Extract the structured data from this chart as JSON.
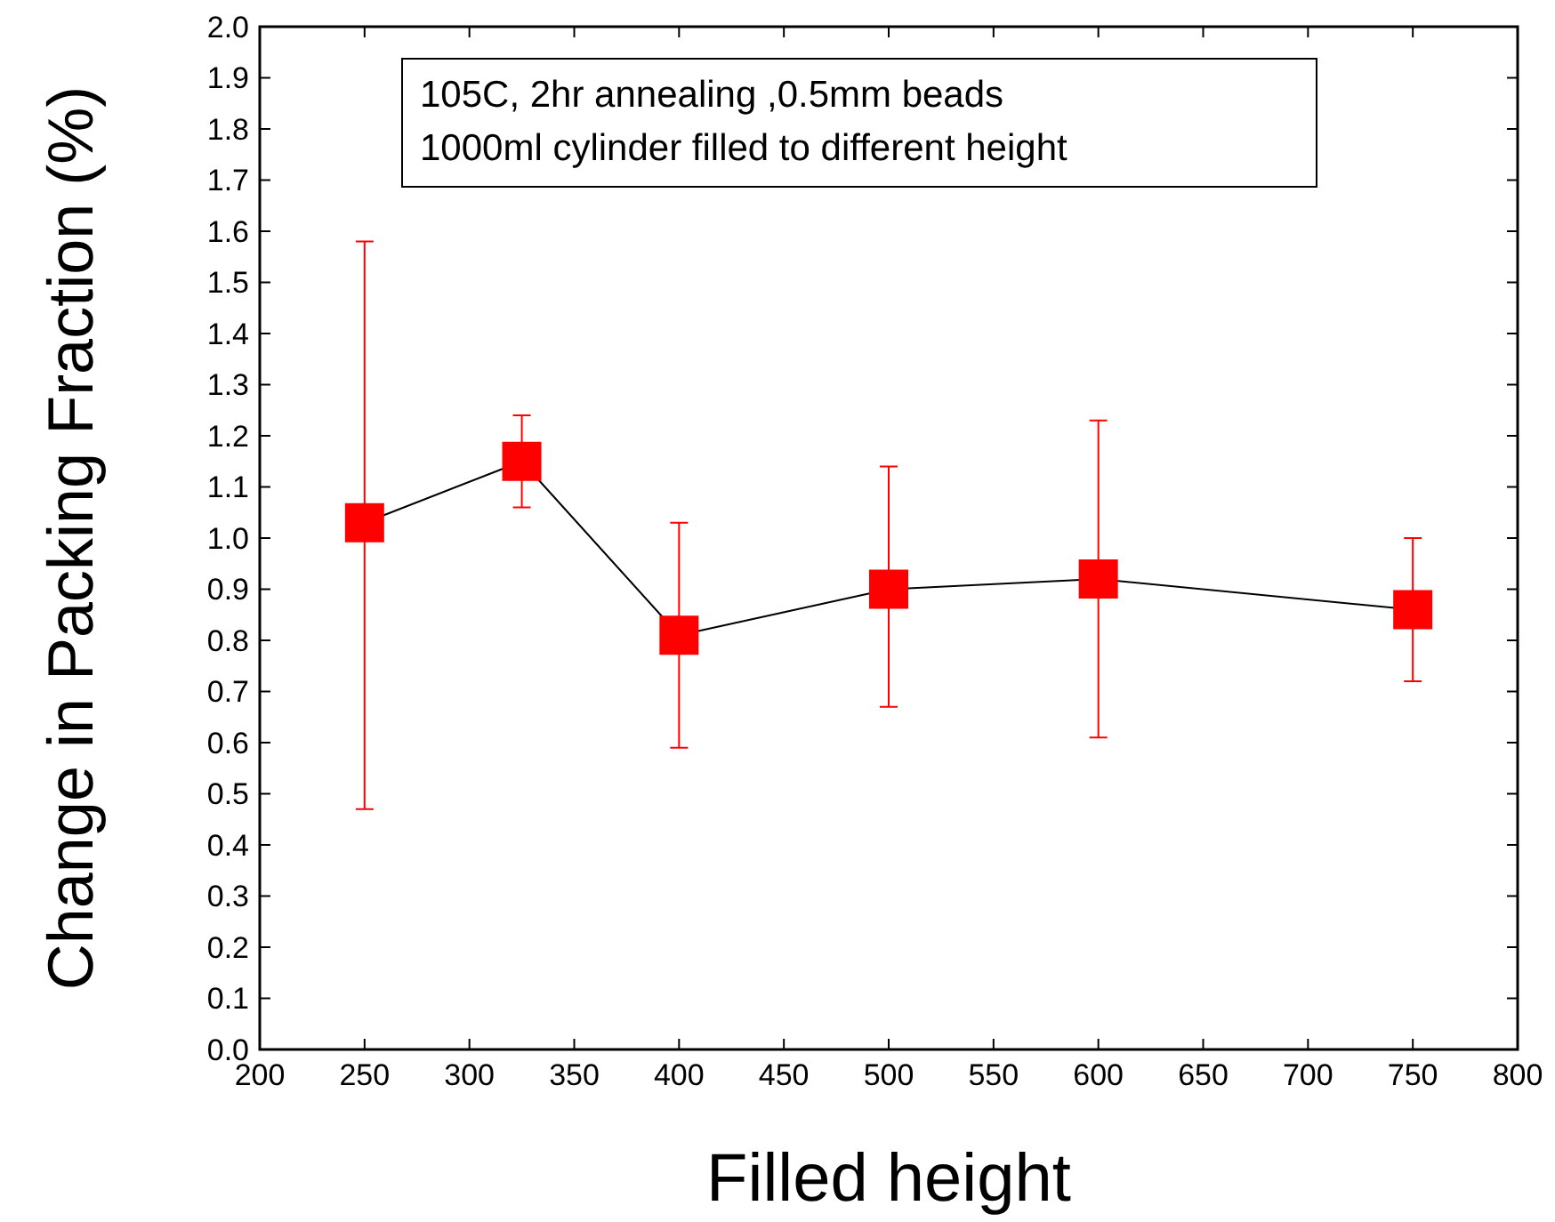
{
  "chart_data": {
    "type": "line",
    "xlabel": "Filled height",
    "ylabel": "Change in Packing Fraction (%)",
    "annotations": [
      "105C, 2hr annealing ,0.5mm beads",
      "1000ml cylinder filled to different height"
    ],
    "x": [
      250,
      325,
      400,
      500,
      600,
      750
    ],
    "series": [
      {
        "color": "#ff0000",
        "values": [
          1.03,
          1.15,
          0.81,
          0.9,
          0.92,
          0.86
        ],
        "errors": [
          [
            0.47,
            1.58
          ],
          [
            1.06,
            1.24
          ],
          [
            0.59,
            1.03
          ],
          [
            0.67,
            1.14
          ],
          [
            0.61,
            1.23
          ],
          [
            0.72,
            1.0
          ]
        ]
      }
    ],
    "xlim": [
      200,
      800
    ],
    "xticks": [
      200,
      250,
      300,
      350,
      400,
      450,
      500,
      550,
      600,
      650,
      700,
      750,
      800
    ],
    "ylim": [
      0,
      2
    ],
    "yticks": [
      {
        "value": 0,
        "label": "0.0"
      },
      {
        "value": 0.1,
        "label": "0.1"
      },
      {
        "value": 0.2,
        "label": "0.2"
      },
      {
        "value": 0.3,
        "label": "0.3"
      },
      {
        "value": 0.4,
        "label": "0.4"
      },
      {
        "value": 0.5,
        "label": "0.5"
      },
      {
        "value": 0.6,
        "label": "0.6"
      },
      {
        "value": 0.7,
        "label": "0.7"
      },
      {
        "value": 0.8,
        "label": "0.8"
      },
      {
        "value": 0.9,
        "label": "0.9"
      },
      {
        "value": 1,
        "label": "1.0"
      },
      {
        "value": 1.1,
        "label": "1.1"
      },
      {
        "value": 1.2,
        "label": "1.2"
      },
      {
        "value": 1.3,
        "label": "1.3"
      },
      {
        "value": 1.4,
        "label": "1.4"
      },
      {
        "value": 1.5,
        "label": "1.5"
      },
      {
        "value": 1.6,
        "label": "1.6"
      },
      {
        "value": 1.7,
        "label": "1.7"
      },
      {
        "value": 1.8,
        "label": "1.8"
      },
      {
        "value": 1.9,
        "label": "1.9"
      },
      {
        "value": 2,
        "label": "2.0"
      }
    ],
    "grid": false,
    "marker": "square",
    "line_style": "solid"
  }
}
